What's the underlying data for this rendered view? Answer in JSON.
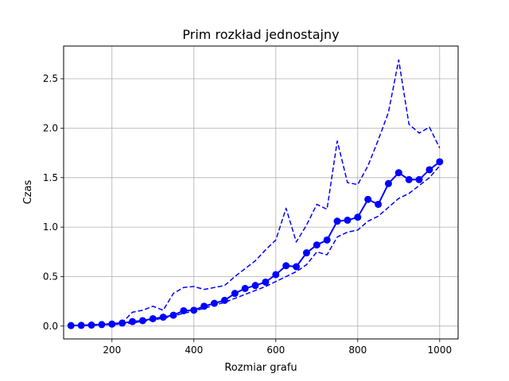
{
  "chart_data": {
    "type": "line",
    "title": "Prim rozkład jednostajny",
    "xlabel": "Rozmiar grafu",
    "ylabel": "Czas",
    "xlim": [
      82,
      1045
    ],
    "ylim": [
      -0.13,
      2.83
    ],
    "xticks": [
      200,
      400,
      600,
      800,
      1000
    ],
    "xtick_labels": [
      "200",
      "400",
      "600",
      "800",
      "1000"
    ],
    "yticks": [
      0.0,
      0.5,
      1.0,
      1.5,
      2.0,
      2.5
    ],
    "ytick_labels": [
      "0.0",
      "0.5",
      "1.0",
      "1.5",
      "2.0",
      "2.5"
    ],
    "grid": true,
    "color": "#0000ff",
    "x": [
      100,
      125,
      150,
      175,
      200,
      225,
      250,
      275,
      300,
      325,
      350,
      375,
      400,
      425,
      450,
      475,
      500,
      525,
      550,
      575,
      600,
      625,
      650,
      675,
      700,
      725,
      750,
      775,
      800,
      825,
      850,
      875,
      900,
      925,
      950,
      975,
      1000
    ],
    "series": [
      {
        "style": "solid-markers",
        "values": [
          0.005,
          0.007,
          0.01,
          0.015,
          0.02,
          0.03,
          0.045,
          0.055,
          0.075,
          0.09,
          0.11,
          0.155,
          0.16,
          0.2,
          0.23,
          0.26,
          0.33,
          0.38,
          0.41,
          0.445,
          0.52,
          0.61,
          0.6,
          0.74,
          0.82,
          0.87,
          1.06,
          1.07,
          1.1,
          1.28,
          1.23,
          1.44,
          1.55,
          1.48,
          1.48,
          1.58,
          1.66
        ]
      },
      {
        "style": "dashed",
        "values": [
          0.005,
          0.008,
          0.012,
          0.018,
          0.025,
          0.035,
          0.14,
          0.16,
          0.2,
          0.16,
          0.33,
          0.39,
          0.4,
          0.37,
          0.39,
          0.41,
          0.5,
          0.58,
          0.66,
          0.77,
          0.87,
          1.19,
          0.85,
          1.02,
          1.23,
          1.18,
          1.87,
          1.45,
          1.43,
          1.62,
          1.88,
          2.16,
          2.69,
          2.04,
          1.95,
          2.01,
          1.8
        ]
      },
      {
        "style": "dashed",
        "values": [
          0.003,
          0.005,
          0.008,
          0.012,
          0.015,
          0.02,
          0.03,
          0.05,
          0.06,
          0.08,
          0.1,
          0.13,
          0.15,
          0.18,
          0.21,
          0.24,
          0.28,
          0.32,
          0.36,
          0.4,
          0.45,
          0.5,
          0.55,
          0.62,
          0.75,
          0.72,
          0.9,
          0.95,
          0.97,
          1.06,
          1.11,
          1.2,
          1.29,
          1.34,
          1.42,
          1.5,
          1.62
        ]
      }
    ]
  }
}
